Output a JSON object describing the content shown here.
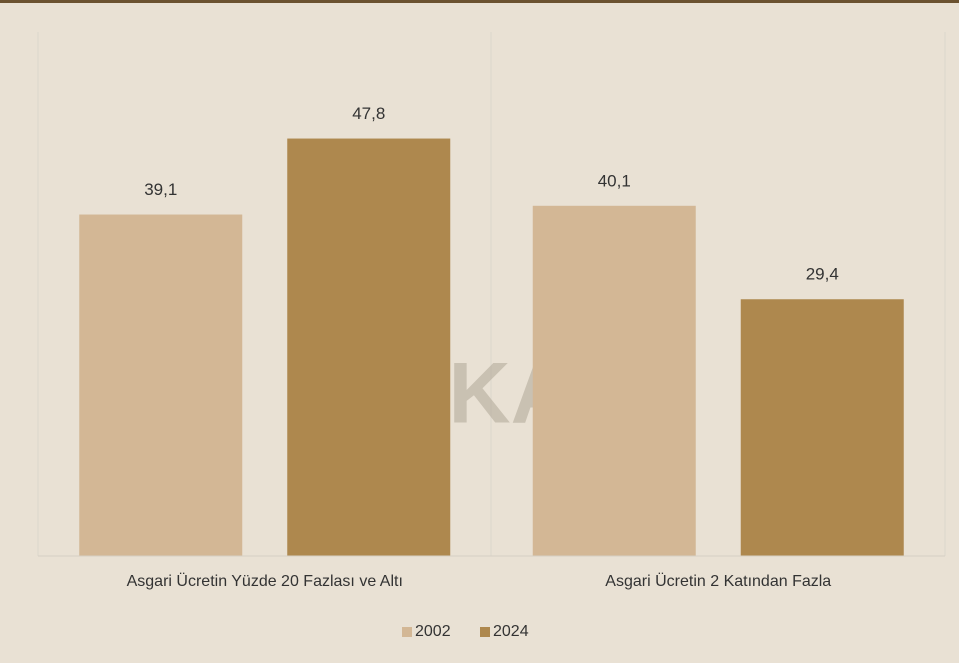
{
  "chart_data": {
    "type": "bar",
    "categories": [
      "Asgari Ücretin Yüzde 20 Fazlası ve Altı",
      "Asgari Ücretin 2 Katından Fazla"
    ],
    "series": [
      {
        "name": "2002",
        "color": "#d3b795",
        "values": [
          39.1,
          40.1
        ],
        "value_labels": [
          "39,1",
          "40,1"
        ]
      },
      {
        "name": "2024",
        "color": "#ae884e",
        "values": [
          47.8,
          29.4
        ],
        "value_labels": [
          "47,8",
          "29,4"
        ]
      }
    ],
    "ylim": [
      0,
      60
    ],
    "legend": "bottom",
    "watermark": "DiSKAR"
  }
}
